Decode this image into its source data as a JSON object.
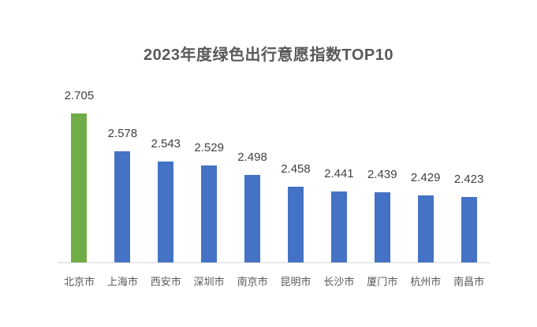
{
  "title": "2023年度绿色出行意愿指数TOP10",
  "colors": {
    "highlight_bar": "#70ad47",
    "default_bar": "#4472c4",
    "axis_line": "#d9d9d9",
    "title_text": "#595959",
    "value_label_text": "#404040",
    "category_label_text": "#595959",
    "background": "#ffffff"
  },
  "chart_data": {
    "type": "bar",
    "title": "2023年度绿色出行意愿指数TOP10",
    "categories": [
      "北京市",
      "上海市",
      "西安市",
      "深圳市",
      "南京市",
      "昆明市",
      "长沙市",
      "厦门市",
      "杭州市",
      "南昌市"
    ],
    "values": [
      2.705,
      2.578,
      2.543,
      2.529,
      2.498,
      2.458,
      2.441,
      2.439,
      2.429,
      2.423
    ],
    "highlight_index": 0,
    "xlabel": "",
    "ylabel": "",
    "ylim": [
      2.2,
      2.8
    ],
    "grid": false,
    "legend": false,
    "data_labels": true,
    "value_axis_visible": false,
    "category_axis_visible": true
  }
}
